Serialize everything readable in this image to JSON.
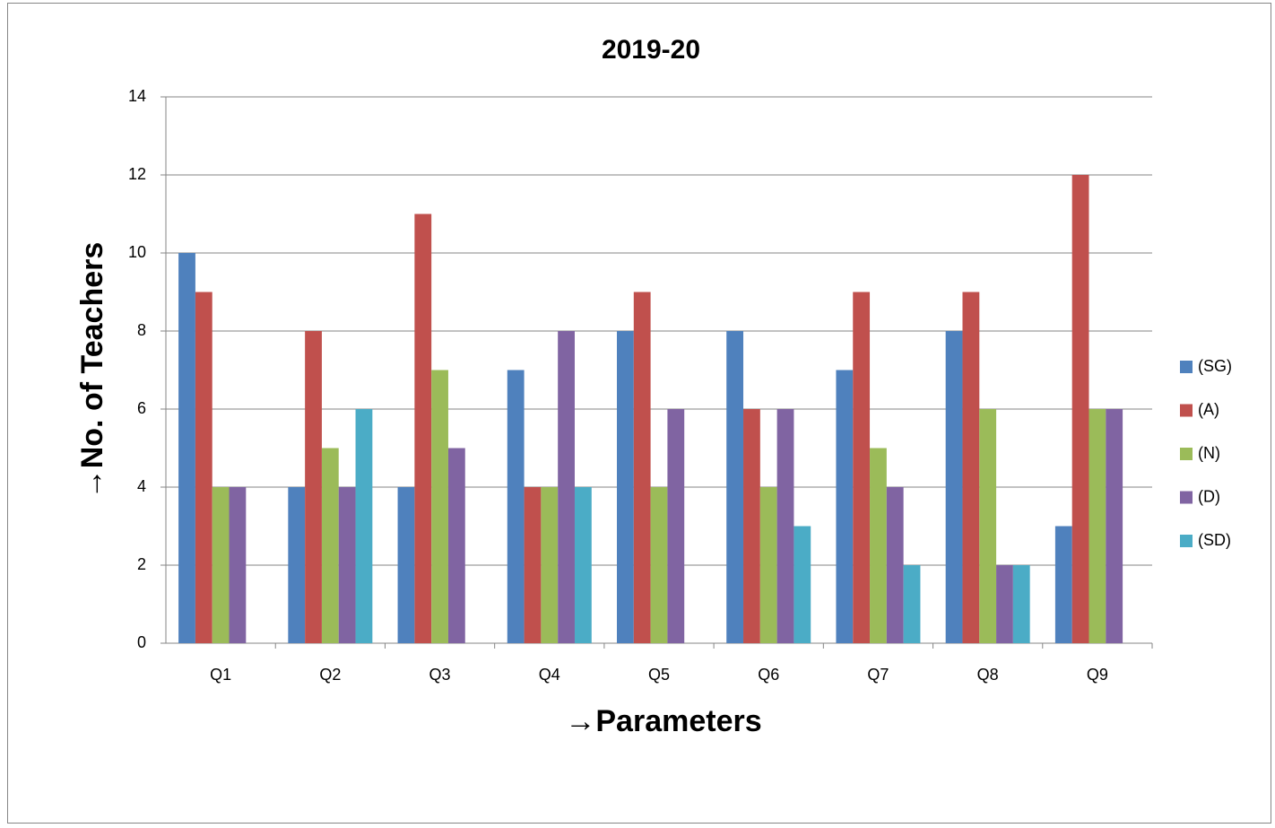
{
  "chart_data": {
    "type": "bar",
    "title": "2019-20",
    "x_label": "→Parameters",
    "y_label": "→No. of Teachers",
    "categories": [
      "Q1",
      "Q2",
      "Q3",
      "Q4",
      "Q5",
      "Q6",
      "Q7",
      "Q8",
      "Q9"
    ],
    "series": [
      {
        "name": "(SG)",
        "color": "#4f81bd",
        "values": [
          10,
          4,
          4,
          7,
          8,
          8,
          7,
          8,
          3
        ]
      },
      {
        "name": "(A)",
        "color": "#c0504d",
        "values": [
          9,
          8,
          11,
          4,
          9,
          6,
          9,
          9,
          12
        ]
      },
      {
        "name": "(N)",
        "color": "#9bbb59",
        "values": [
          4,
          5,
          7,
          4,
          4,
          4,
          5,
          6,
          6
        ]
      },
      {
        "name": "(D)",
        "color": "#8064a2",
        "values": [
          4,
          4,
          5,
          8,
          6,
          6,
          4,
          2,
          6
        ]
      },
      {
        "name": "(SD)",
        "color": "#4bacc6",
        "values": [
          0,
          6,
          0,
          4,
          0,
          3,
          2,
          2,
          0
        ]
      }
    ],
    "ylim": [
      0,
      14
    ],
    "yticks": [
      0,
      2,
      4,
      6,
      8,
      10,
      12,
      14
    ],
    "grid": true,
    "legend": "right"
  }
}
